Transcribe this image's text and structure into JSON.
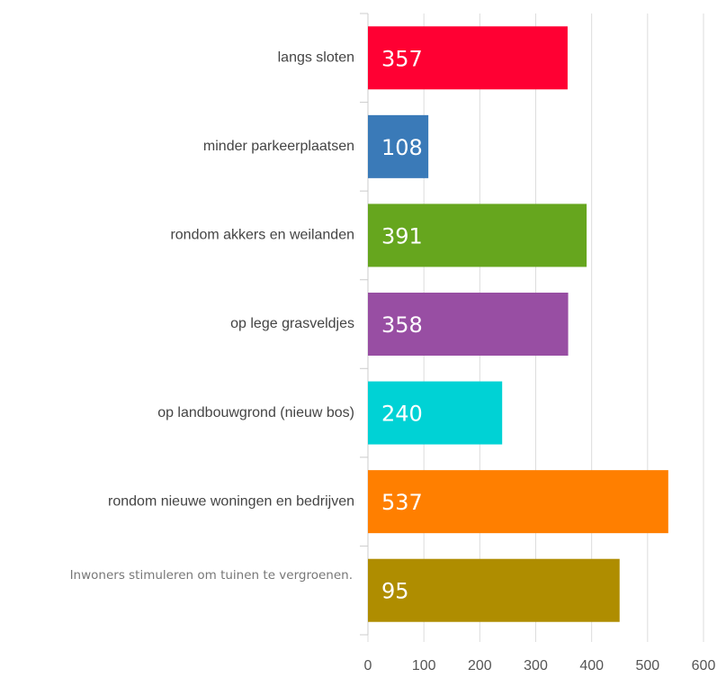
{
  "chart_data": {
    "type": "bar",
    "orientation": "horizontal",
    "categories": [
      "langs sloten",
      "minder parkeerplaatsen",
      "rondom akkers en weilanden",
      "op lege grasveldjes",
      "op landbouwgrond (nieuw bos)",
      "rondom nieuwe woningen en bedrijven",
      "Inwoners stimuleren om tuinen te vergroenen."
    ],
    "values": [
      357,
      108,
      391,
      358,
      240,
      537,
      450
    ],
    "colors": [
      "#ff0033",
      "#3a7ab8",
      "#66a61e",
      "#984ea3",
      "#00d2d5",
      "#ff7f00",
      "#af8d00"
    ],
    "annotations": [
      "95"
    ],
    "xlim": [
      0,
      600
    ],
    "xticks": [
      0,
      100,
      200,
      300,
      400,
      500,
      600
    ],
    "grid": true
  }
}
